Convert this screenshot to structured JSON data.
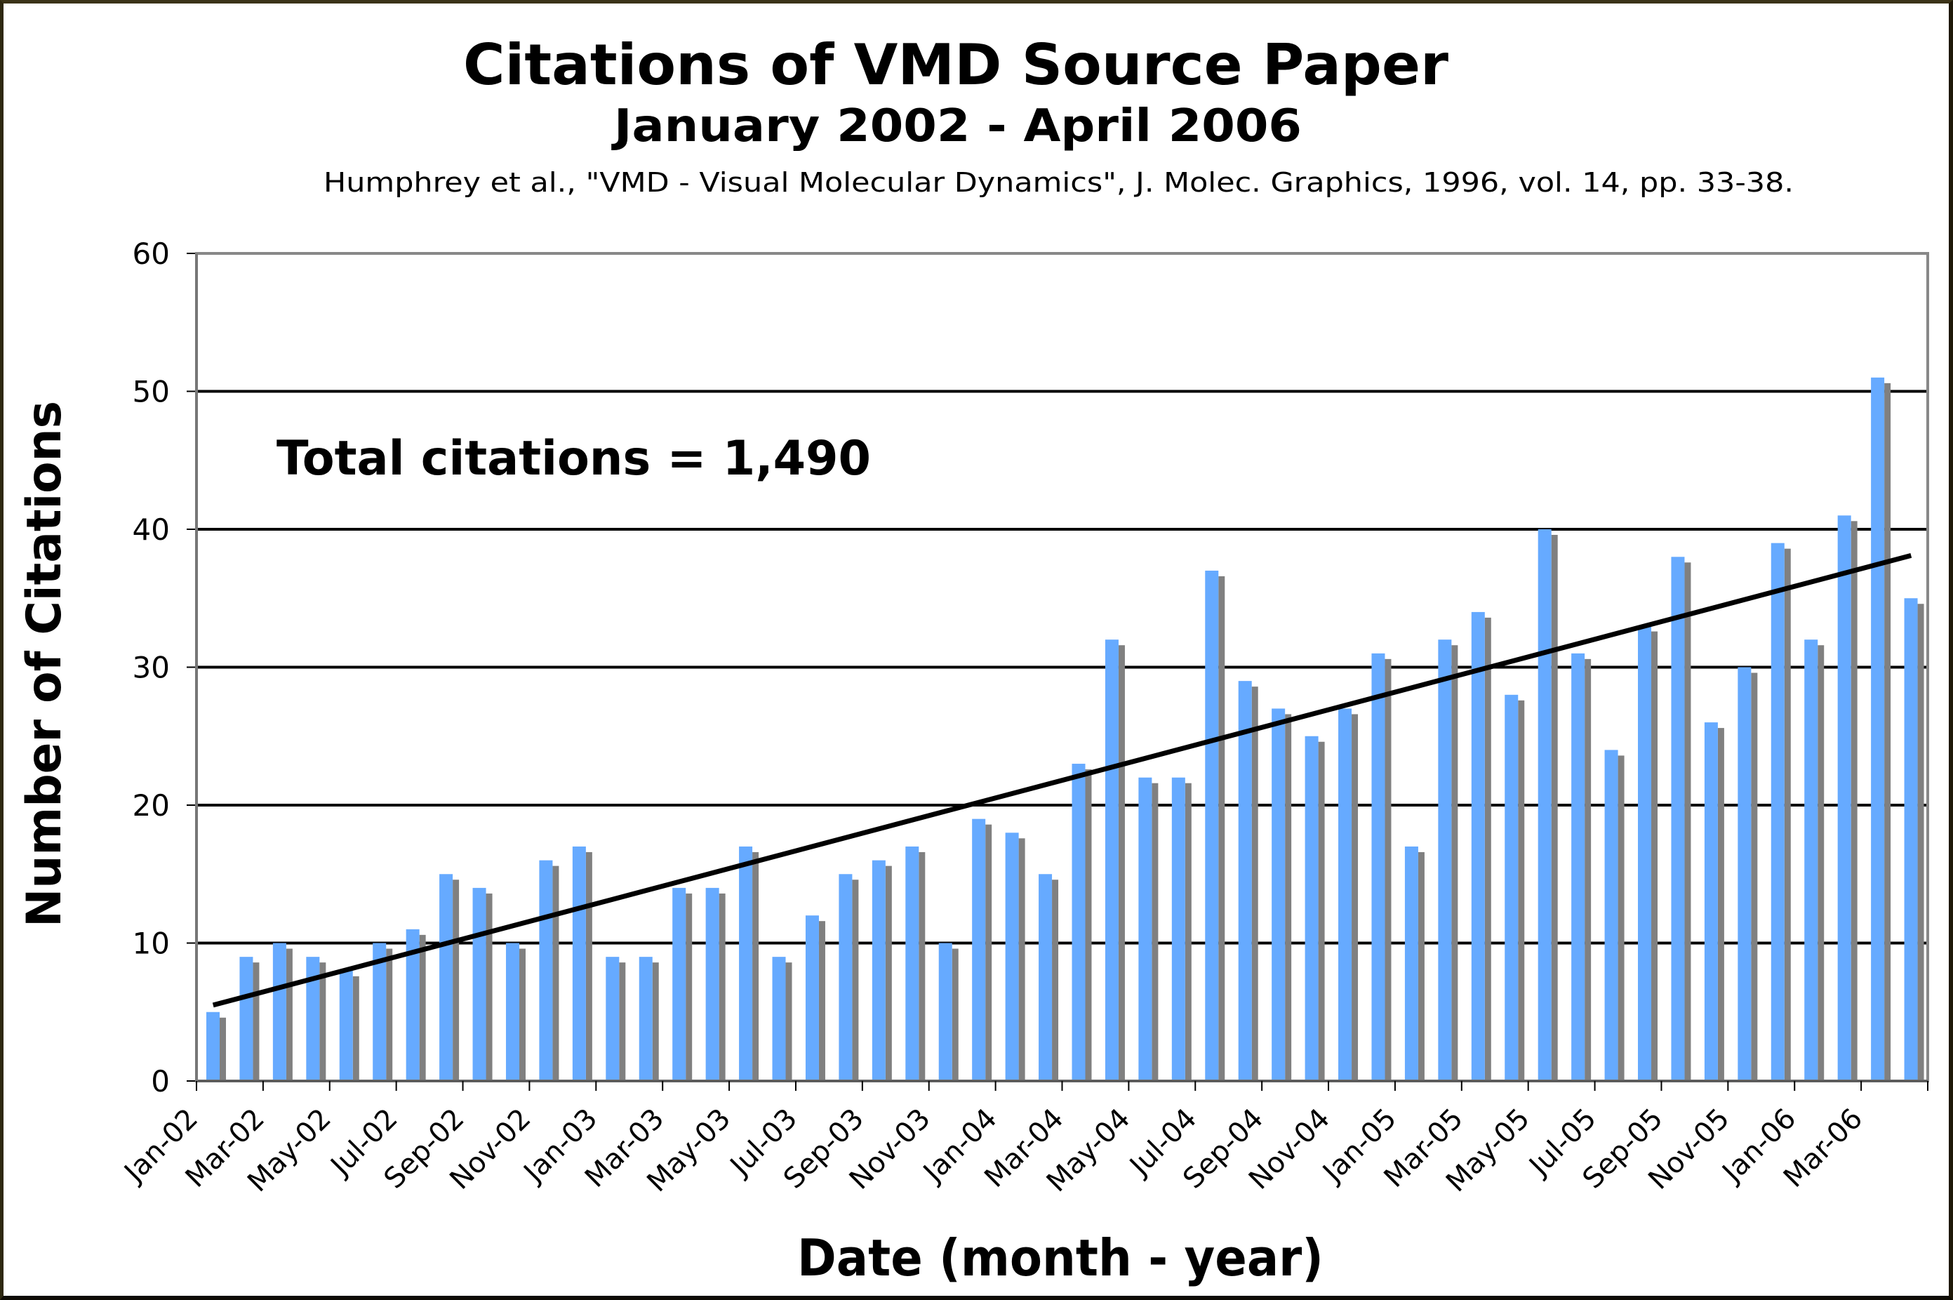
{
  "chart_data": {
    "type": "bar",
    "title": "Citations of VMD Source Paper",
    "subtitle": "January 2002 - April 2006",
    "reference": "Humphrey et al., \"VMD - Visual Molecular Dynamics\", J. Molec. Graphics, 1996, vol. 14, pp. 33-38.",
    "annotation": "Total citations = 1,490",
    "xlabel": "Date (month - year)",
    "ylabel": "Number of Citations",
    "ylim": [
      0,
      60
    ],
    "yticks": [
      0,
      10,
      20,
      30,
      40,
      50,
      60
    ],
    "grid": true,
    "legend": "none",
    "xtick_labels": [
      "Jan-02",
      "Mar-02",
      "May-02",
      "Jul-02",
      "Sep-02",
      "Nov-02",
      "Jan-03",
      "Mar-03",
      "May-03",
      "Jul-03",
      "Sep-03",
      "Nov-03",
      "Jan-04",
      "Mar-04",
      "May-04",
      "Jul-04",
      "Sep-04",
      "Nov-04",
      "Jan-05",
      "Mar-05",
      "May-05",
      "Jul-05",
      "Sep-05",
      "Nov-05",
      "Jan-06",
      "Mar-06"
    ],
    "categories": [
      "Jan-02",
      "Feb-02",
      "Mar-02",
      "Apr-02",
      "May-02",
      "Jun-02",
      "Jul-02",
      "Aug-02",
      "Sep-02",
      "Oct-02",
      "Nov-02",
      "Dec-02",
      "Jan-03",
      "Feb-03",
      "Mar-03",
      "Apr-03",
      "May-03",
      "Jun-03",
      "Jul-03",
      "Aug-03",
      "Sep-03",
      "Oct-03",
      "Nov-03",
      "Dec-03",
      "Jan-04",
      "Feb-04",
      "Mar-04",
      "Apr-04",
      "May-04",
      "Jun-04",
      "Jul-04",
      "Aug-04",
      "Sep-04",
      "Oct-04",
      "Nov-04",
      "Dec-04",
      "Jan-05",
      "Feb-05",
      "Mar-05",
      "Apr-05",
      "May-05",
      "Jun-05",
      "Jul-05",
      "Aug-05",
      "Sep-05",
      "Oct-05",
      "Nov-05",
      "Dec-05",
      "Jan-06",
      "Feb-06",
      "Mar-06",
      "Apr-06"
    ],
    "series": [
      {
        "name": "Citations",
        "color": "#66aaff",
        "shadow_color": "#808080",
        "values": [
          5,
          9,
          10,
          9,
          8,
          10,
          11,
          15,
          14,
          10,
          16,
          17,
          9,
          9,
          14,
          14,
          17,
          9,
          12,
          15,
          16,
          17,
          10,
          19,
          18,
          15,
          23,
          32,
          22,
          22,
          37,
          29,
          27,
          25,
          27,
          31,
          17,
          32,
          34,
          28,
          40,
          31,
          24,
          33,
          38,
          26,
          30,
          39,
          32,
          41,
          51,
          35
        ]
      }
    ],
    "trendline": {
      "type": "linear",
      "color": "#000000",
      "start_value": 5.5,
      "end_value": 38.1
    }
  },
  "colors": {
    "background": "#ffffff",
    "gridline": "#000000",
    "plot_border": "#888888",
    "frame": "#2e2810"
  }
}
